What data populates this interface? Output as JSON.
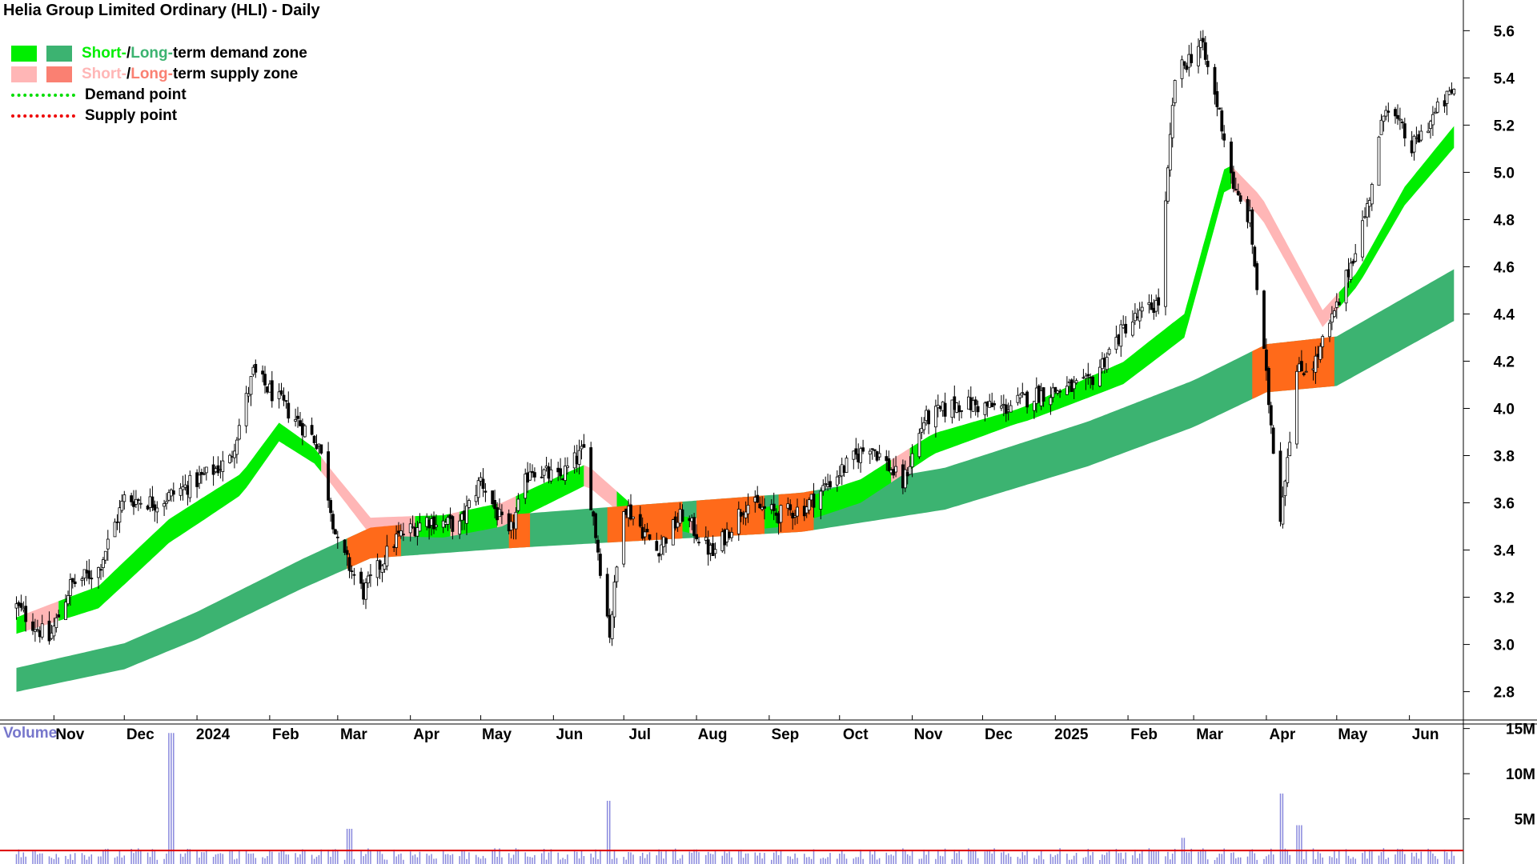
{
  "title": "Helia Group Limited Ordinary (HLI) - Daily",
  "legend": {
    "row1": {
      "short": "Short-",
      "sep": " / ",
      "long": "Long-",
      "rest": "term demand zone"
    },
    "row2": {
      "short": "Short-",
      "sep": " / ",
      "long": "Long-",
      "rest": "term supply zone"
    },
    "demand_point": "Demand point",
    "supply_point": "Supply point"
  },
  "colors": {
    "short_demand": "#00ee00",
    "long_demand": "#3cb371",
    "short_supply": "#ffb6b6",
    "long_supply": "#fa8072",
    "supply_overlap": "#ff6a1a",
    "demand_point": "#00dd00",
    "supply_point": "#ee0000",
    "candle": "#000000",
    "volume_bar": "#8888dd",
    "volume_avg": "#dd0000",
    "grid_axis": "#000000"
  },
  "volume_label": "Volume",
  "chart_data": [
    {
      "type": "candlestick",
      "title": "Helia Group Limited Ordinary (HLI) - Daily",
      "x_ticks": [
        "Nov",
        "Dec",
        "2024",
        "Feb",
        "Mar",
        "Apr",
        "May",
        "Jun",
        "Jul",
        "Aug",
        "Sep",
        "Oct",
        "Nov",
        "Dec",
        "2025",
        "Feb",
        "Mar",
        "Apr",
        "May",
        "Jun"
      ],
      "y_ticks": [
        "2.8",
        "3.0",
        "3.2",
        "3.4",
        "3.6",
        "3.8",
        "4.0",
        "4.2",
        "4.4",
        "4.6",
        "4.8",
        "5.0",
        "5.2",
        "5.4",
        "5.6"
      ],
      "ylim": [
        2.68,
        5.73
      ],
      "close_path": [
        [
          "2023-10-16",
          3.16
        ],
        [
          "2023-10-30",
          3.02
        ],
        [
          "2023-11-08",
          3.25
        ],
        [
          "2023-11-20",
          3.32
        ],
        [
          "2023-12-01",
          3.62
        ],
        [
          "2023-12-15",
          3.6
        ],
        [
          "2024-01-02",
          3.7
        ],
        [
          "2024-01-15",
          3.78
        ],
        [
          "2024-01-25",
          4.15
        ],
        [
          "2024-02-08",
          4.0
        ],
        [
          "2024-02-22",
          3.85
        ],
        [
          "2024-03-01",
          3.42
        ],
        [
          "2024-03-12",
          3.22
        ],
        [
          "2024-03-26",
          3.45
        ],
        [
          "2024-04-08",
          3.53
        ],
        [
          "2024-04-22",
          3.5
        ],
        [
          "2024-05-01",
          3.7
        ],
        [
          "2024-05-13",
          3.45
        ],
        [
          "2024-05-22",
          3.75
        ],
        [
          "2024-06-03",
          3.7
        ],
        [
          "2024-06-14",
          3.82
        ],
        [
          "2024-06-25",
          3.05
        ],
        [
          "2024-07-01",
          3.6
        ],
        [
          "2024-07-15",
          3.4
        ],
        [
          "2024-07-26",
          3.55
        ],
        [
          "2024-08-08",
          3.38
        ],
        [
          "2024-08-22",
          3.6
        ],
        [
          "2024-09-05",
          3.55
        ],
        [
          "2024-09-16",
          3.58
        ],
        [
          "2024-09-30",
          3.72
        ],
        [
          "2024-10-14",
          3.85
        ],
        [
          "2024-10-28",
          3.68
        ],
        [
          "2024-11-06",
          3.95
        ],
        [
          "2024-11-20",
          4.02
        ],
        [
          "2024-12-10",
          4.0
        ],
        [
          "2024-12-24",
          4.06
        ],
        [
          "2025-01-15",
          4.1
        ],
        [
          "2025-01-31",
          4.35
        ],
        [
          "2025-02-14",
          4.45
        ],
        [
          "2025-02-21",
          5.4
        ],
        [
          "2025-03-04",
          5.55
        ],
        [
          "2025-03-12",
          5.25
        ],
        [
          "2025-03-19",
          4.9
        ],
        [
          "2025-03-25",
          4.8
        ],
        [
          "2025-04-07",
          3.55
        ],
        [
          "2025-04-14",
          4.15
        ],
        [
          "2025-04-22",
          4.2
        ],
        [
          "2025-05-02",
          4.45
        ],
        [
          "2025-05-14",
          4.85
        ],
        [
          "2025-05-22",
          5.3
        ],
        [
          "2025-06-02",
          5.1
        ],
        [
          "2025-06-12",
          5.25
        ],
        [
          "2025-06-20",
          5.35
        ]
      ],
      "short_term_zone_path": [
        [
          "2023-10-16",
          3.08
        ],
        [
          "2023-11-20",
          3.2
        ],
        [
          "2023-12-20",
          3.48
        ],
        [
          "2024-01-20",
          3.68
        ],
        [
          "2024-02-05",
          3.9
        ],
        [
          "2024-02-20",
          3.8
        ],
        [
          "2024-03-15",
          3.5
        ],
        [
          "2024-04-15",
          3.5
        ],
        [
          "2024-05-10",
          3.55
        ],
        [
          "2024-06-15",
          3.72
        ],
        [
          "2024-07-05",
          3.55
        ],
        [
          "2024-08-01",
          3.5
        ],
        [
          "2024-09-10",
          3.55
        ],
        [
          "2024-10-10",
          3.65
        ],
        [
          "2024-11-10",
          3.85
        ],
        [
          "2024-12-20",
          3.98
        ],
        [
          "2025-01-30",
          4.15
        ],
        [
          "2025-02-25",
          4.35
        ],
        [
          "2025-03-15",
          5.0
        ],
        [
          "2025-03-30",
          4.85
        ],
        [
          "2025-04-25",
          4.38
        ],
        [
          "2025-05-10",
          4.55
        ],
        [
          "2025-05-30",
          4.9
        ],
        [
          "2025-06-20",
          5.15
        ]
      ],
      "long_term_zone_path": [
        [
          "2023-10-16",
          2.85
        ],
        [
          "2023-12-01",
          2.95
        ],
        [
          "2024-01-01",
          3.08
        ],
        [
          "2024-02-15",
          3.3
        ],
        [
          "2024-03-15",
          3.43
        ],
        [
          "2024-05-15",
          3.48
        ],
        [
          "2024-07-15",
          3.52
        ],
        [
          "2024-09-15",
          3.56
        ],
        [
          "2024-11-15",
          3.66
        ],
        [
          "2025-01-15",
          3.85
        ],
        [
          "2025-03-01",
          4.02
        ],
        [
          "2025-04-01",
          4.17
        ],
        [
          "2025-05-01",
          4.2
        ],
        [
          "2025-06-20",
          4.48
        ]
      ],
      "series": [
        {
          "name": "Short-term demand zone",
          "color": "#00ee00"
        },
        {
          "name": "Long-term demand zone",
          "color": "#3cb371"
        },
        {
          "name": "Short-term supply zone",
          "color": "#ffb6b6"
        },
        {
          "name": "Long-term supply zone",
          "color": "#fa8072"
        }
      ],
      "legend_position": "top-left",
      "grid": false
    },
    {
      "type": "bar",
      "title": "Volume",
      "y_ticks": [
        "5M",
        "10M",
        "15M"
      ],
      "ylim": [
        0,
        15500000
      ],
      "peaks": [
        [
          "2023-12-21",
          14500000
        ],
        [
          "2024-06-24",
          7000000
        ],
        [
          "2025-04-07",
          7800000
        ],
        [
          "2025-04-15",
          4300000
        ],
        [
          "2024-03-06",
          3900000
        ],
        [
          "2025-02-24",
          2900000
        ]
      ],
      "typical_volume": 1100000,
      "average_line_level": 1500000
    }
  ]
}
